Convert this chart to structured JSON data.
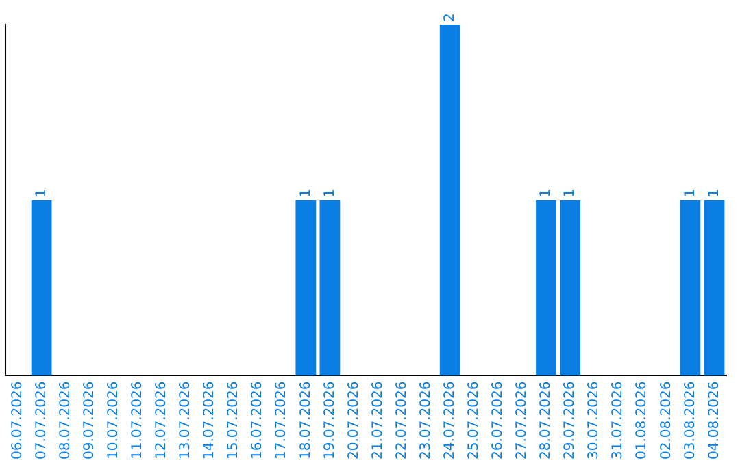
{
  "chart_data": {
    "type": "bar",
    "categories": [
      "06.07.2026",
      "07.07.2026",
      "08.07.2026",
      "09.07.2026",
      "10.07.2026",
      "11.07.2026",
      "12.07.2026",
      "13.07.2026",
      "14.07.2026",
      "15.07.2026",
      "16.07.2026",
      "17.07.2026",
      "18.07.2026",
      "19.07.2026",
      "20.07.2026",
      "21.07.2026",
      "22.07.2026",
      "23.07.2026",
      "24.07.2026",
      "25.07.2026",
      "26.07.2026",
      "27.07.2026",
      "28.07.2026",
      "29.07.2026",
      "30.07.2026",
      "31.07.2026",
      "01.08.2026",
      "02.08.2026",
      "03.08.2026",
      "04.08.2026"
    ],
    "values": [
      0,
      1,
      0,
      0,
      0,
      0,
      0,
      0,
      0,
      0,
      0,
      0,
      1,
      1,
      0,
      0,
      0,
      0,
      2,
      0,
      0,
      0,
      1,
      1,
      0,
      0,
      0,
      0,
      1,
      1
    ],
    "value_labels": [
      null,
      "1",
      null,
      null,
      null,
      null,
      null,
      null,
      null,
      null,
      null,
      null,
      "1",
      "1",
      null,
      null,
      null,
      null,
      "2",
      null,
      null,
      null,
      "1",
      "1",
      null,
      null,
      null,
      null,
      "1",
      "1"
    ],
    "color": "#0a7ee3",
    "tick_labels": "x",
    "grid": false,
    "legend": false
  }
}
